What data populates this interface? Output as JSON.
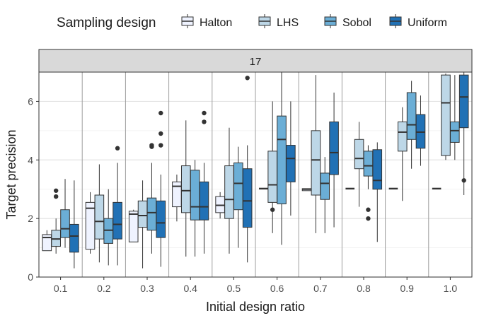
{
  "legend": {
    "title": "Sampling design",
    "items": [
      {
        "label": "Halton",
        "color": "#eff3ff"
      },
      {
        "label": "LHS",
        "color": "#bdd7e7"
      },
      {
        "label": "Sobol",
        "color": "#6baed6"
      },
      {
        "label": "Uniform",
        "color": "#2171b5"
      }
    ]
  },
  "chart_data": {
    "type": "box",
    "facet_label": "17",
    "xlabel": "Initial design ratio",
    "ylabel": "Target precision",
    "categories": [
      "0.1",
      "0.2",
      "0.3",
      "0.4",
      "0.5",
      "0.6",
      "0.7",
      "0.8",
      "0.9",
      "1.0"
    ],
    "yticks": [
      0,
      2,
      4,
      6
    ],
    "ylim": [
      0,
      7.0
    ],
    "grid": true,
    "legend_position": "top",
    "series": [
      {
        "name": "Halton",
        "boxes": [
          {
            "min": 0.9,
            "q1": 0.9,
            "median": 1.35,
            "q3": 1.45,
            "max": 1.6,
            "outliers": []
          },
          {
            "min": 0.8,
            "q1": 0.95,
            "median": 2.35,
            "q3": 2.55,
            "max": 2.9,
            "outliers": []
          },
          {
            "min": 1.2,
            "q1": 1.2,
            "median": 2.15,
            "q3": 2.25,
            "max": 2.3,
            "outliers": []
          },
          {
            "min": 1.9,
            "q1": 2.4,
            "median": 3.1,
            "q3": 3.25,
            "max": 3.5,
            "outliers": []
          },
          {
            "min": 2.0,
            "q1": 2.2,
            "median": 2.45,
            "q3": 2.75,
            "max": 2.9,
            "outliers": []
          },
          {
            "min": 3.02,
            "q1": 3.02,
            "median": 3.02,
            "q3": 3.02,
            "max": 3.02,
            "outliers": []
          },
          {
            "min": 2.95,
            "q1": 2.95,
            "median": 3.0,
            "q3": 3.02,
            "max": 3.02,
            "outliers": []
          },
          {
            "min": 3.02,
            "q1": 3.02,
            "median": 3.02,
            "q3": 3.02,
            "max": 3.02,
            "outliers": []
          },
          {
            "min": 3.02,
            "q1": 3.02,
            "median": 3.02,
            "q3": 3.02,
            "max": 3.02,
            "outliers": []
          },
          {
            "min": 3.02,
            "q1": 3.02,
            "median": 3.02,
            "q3": 3.02,
            "max": 3.02,
            "outliers": []
          }
        ]
      },
      {
        "name": "LHS",
        "boxes": [
          {
            "min": 0.8,
            "q1": 1.05,
            "median": 1.3,
            "q3": 1.6,
            "max": 2.0,
            "outliers": [
              2.75,
              2.95
            ]
          },
          {
            "min": 0.5,
            "q1": 1.3,
            "median": 1.9,
            "q3": 2.8,
            "max": 3.85,
            "outliers": []
          },
          {
            "min": 0.3,
            "q1": 1.7,
            "median": 2.1,
            "q3": 2.6,
            "max": 3.3,
            "outliers": []
          },
          {
            "min": 0.7,
            "q1": 2.2,
            "median": 2.95,
            "q3": 3.8,
            "max": 5.35,
            "outliers": []
          },
          {
            "min": 0.8,
            "q1": 2.0,
            "median": 2.65,
            "q3": 3.8,
            "max": 5.1,
            "outliers": []
          },
          {
            "min": 1.5,
            "q1": 2.55,
            "median": 3.15,
            "q3": 4.3,
            "max": 6.0,
            "outliers": [
              2.3
            ]
          },
          {
            "min": 1.5,
            "q1": 2.8,
            "median": 4.0,
            "q3": 5.0,
            "max": 6.9,
            "outliers": []
          },
          {
            "min": 2.4,
            "q1": 3.7,
            "median": 4.05,
            "q3": 4.7,
            "max": 5.3,
            "outliers": []
          },
          {
            "min": 2.6,
            "q1": 4.3,
            "median": 4.95,
            "q3": 5.3,
            "max": 5.8,
            "outliers": []
          },
          {
            "min": 4.0,
            "q1": 4.15,
            "median": 5.95,
            "q3": 6.9,
            "max": 6.95,
            "outliers": []
          }
        ]
      },
      {
        "name": "Sobol",
        "boxes": [
          {
            "min": 1.0,
            "q1": 1.35,
            "median": 1.65,
            "q3": 2.3,
            "max": 3.35,
            "outliers": []
          },
          {
            "min": 0.4,
            "q1": 1.15,
            "median": 1.6,
            "q3": 2.0,
            "max": 3.0,
            "outliers": []
          },
          {
            "min": 0.8,
            "q1": 1.6,
            "median": 2.2,
            "q3": 2.7,
            "max": 3.9,
            "outliers": [
              4.45,
              4.5
            ]
          },
          {
            "min": 0.7,
            "q1": 1.95,
            "median": 2.4,
            "q3": 3.65,
            "max": 4.0,
            "outliers": []
          },
          {
            "min": 1.0,
            "q1": 2.3,
            "median": 3.2,
            "q3": 3.9,
            "max": 4.45,
            "outliers": []
          },
          {
            "min": 1.1,
            "q1": 2.5,
            "median": 4.7,
            "q3": 5.5,
            "max": 7.0,
            "outliers": []
          },
          {
            "min": 1.5,
            "q1": 2.65,
            "median": 3.2,
            "q3": 3.55,
            "max": 4.1,
            "outliers": []
          },
          {
            "min": 3.0,
            "q1": 3.45,
            "median": 3.8,
            "q3": 4.3,
            "max": 4.5,
            "outliers": [
              2.3,
              2.0
            ]
          },
          {
            "min": 3.7,
            "q1": 4.7,
            "median": 5.2,
            "q3": 6.3,
            "max": 6.7,
            "outliers": []
          },
          {
            "min": 4.0,
            "q1": 4.6,
            "median": 5.0,
            "q3": 5.3,
            "max": 6.9,
            "outliers": []
          }
        ]
      },
      {
        "name": "Uniform",
        "boxes": [
          {
            "min": 0.3,
            "q1": 0.85,
            "median": 1.4,
            "q3": 1.8,
            "max": 3.3,
            "outliers": []
          },
          {
            "min": 0.4,
            "q1": 1.3,
            "median": 1.8,
            "q3": 2.55,
            "max": 3.9,
            "outliers": [
              4.4
            ]
          },
          {
            "min": 0.35,
            "q1": 1.35,
            "median": 1.85,
            "q3": 2.6,
            "max": 3.5,
            "outliers": [
              5.6,
              4.9,
              4.5
            ]
          },
          {
            "min": 0.8,
            "q1": 1.95,
            "median": 2.4,
            "q3": 3.25,
            "max": 3.9,
            "outliers": [
              5.6,
              5.3
            ]
          },
          {
            "min": 0.5,
            "q1": 1.7,
            "median": 2.6,
            "q3": 3.7,
            "max": 4.5,
            "outliers": [
              6.8
            ]
          },
          {
            "min": 2.1,
            "q1": 3.25,
            "median": 4.05,
            "q3": 4.5,
            "max": 6.0,
            "outliers": []
          },
          {
            "min": 1.7,
            "q1": 3.5,
            "median": 4.25,
            "q3": 5.3,
            "max": 6.3,
            "outliers": []
          },
          {
            "min": 1.2,
            "q1": 3.0,
            "median": 3.3,
            "q3": 4.35,
            "max": 4.6,
            "outliers": []
          },
          {
            "min": 3.8,
            "q1": 4.4,
            "median": 4.95,
            "q3": 5.55,
            "max": 6.2,
            "outliers": []
          },
          {
            "min": 2.8,
            "q1": 5.1,
            "median": 6.15,
            "q3": 6.9,
            "max": 7.0,
            "outliers": [
              3.3
            ]
          }
        ]
      }
    ]
  }
}
